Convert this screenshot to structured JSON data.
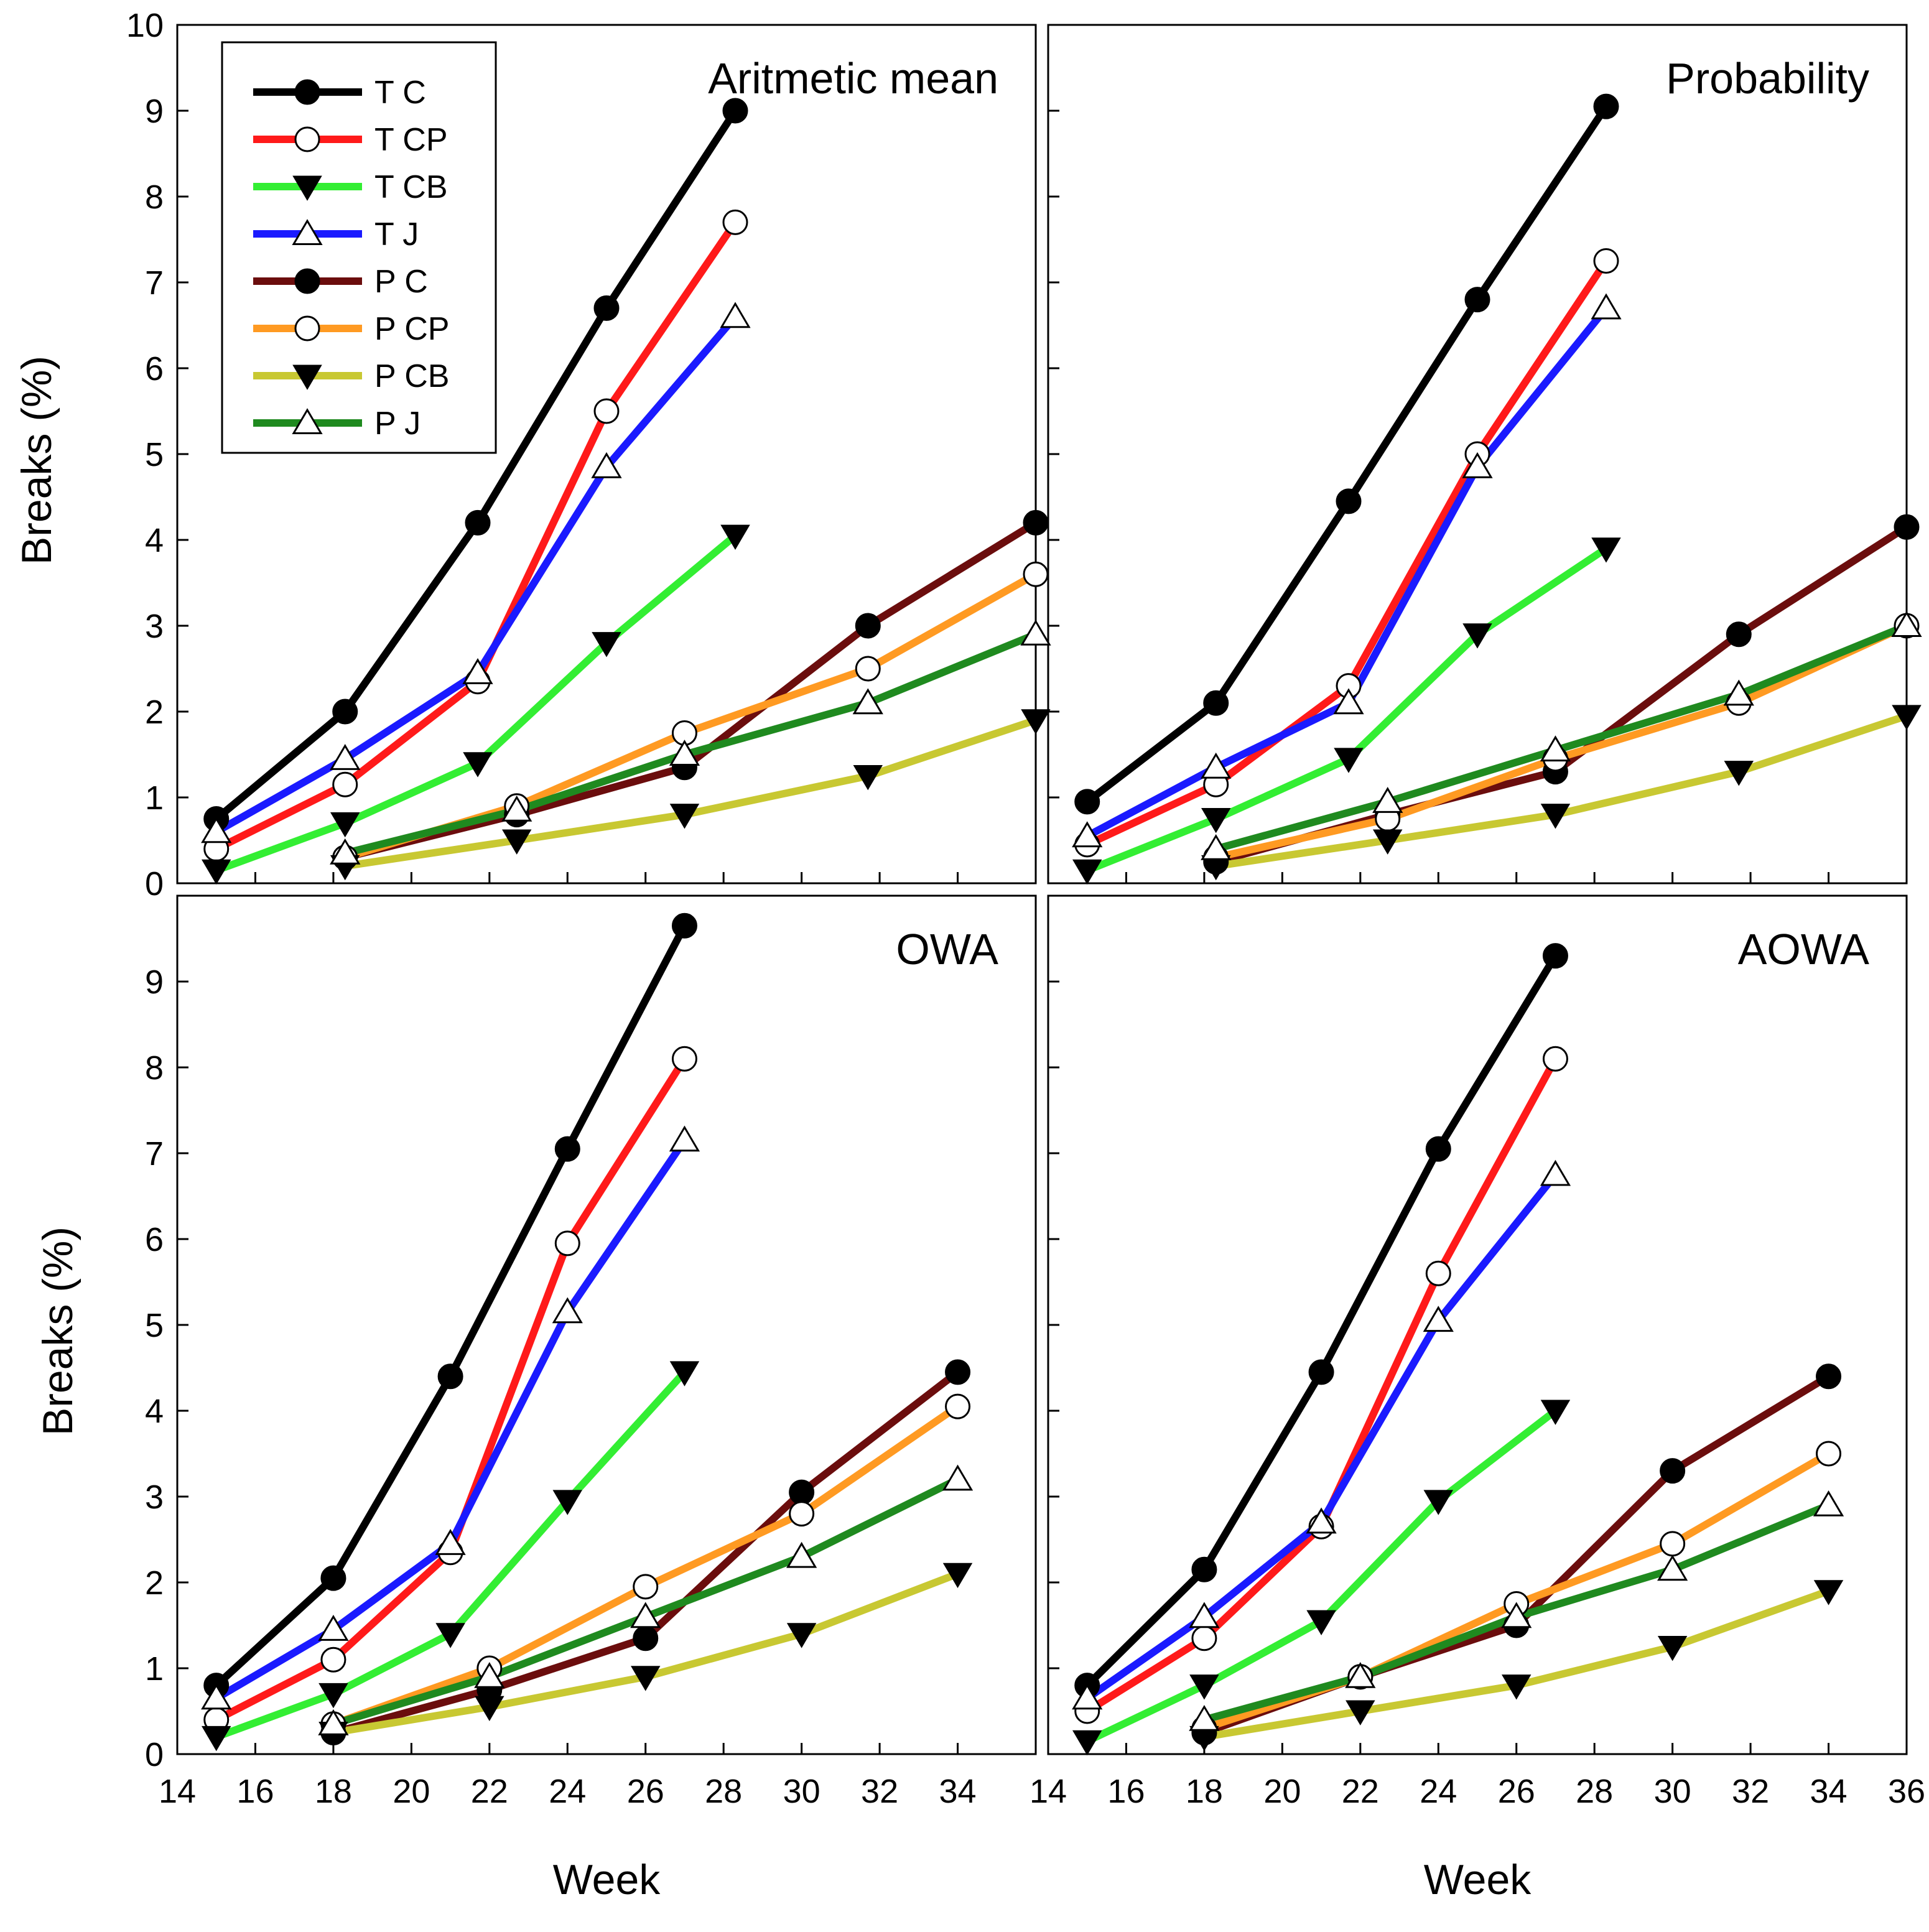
{
  "chart_data": {
    "type": "line",
    "xlabel": "Week",
    "ylabel": "Breaks (%)",
    "series_styles": [
      {
        "name": "T C",
        "color": "#000000",
        "marker": "filled-circle"
      },
      {
        "name": "T CP",
        "color": "#ff1a1a",
        "marker": "open-circle"
      },
      {
        "name": "T CB",
        "color": "#33ee33",
        "marker": "filled-triangle-down"
      },
      {
        "name": "T J",
        "color": "#1a1aff",
        "marker": "open-triangle-up"
      },
      {
        "name": "P C",
        "color": "#6b0d0d",
        "marker": "filled-circle"
      },
      {
        "name": "P CP",
        "color": "#ff9a22",
        "marker": "open-circle"
      },
      {
        "name": "P CB",
        "color": "#c8c832",
        "marker": "filled-triangle-down"
      },
      {
        "name": "P J",
        "color": "#1f8a1f",
        "marker": "open-triangle-up"
      }
    ],
    "panels": [
      {
        "title": "Aritmetic mean",
        "xlim": [
          14,
          36
        ],
        "ylim": [
          0,
          10
        ],
        "yticks": [
          0,
          1,
          2,
          3,
          4,
          5,
          6,
          7,
          8,
          9,
          10
        ],
        "xticks": [],
        "series": [
          {
            "name": "T C",
            "x": [
              15,
              18.3,
              21.7,
              25,
              28.3
            ],
            "y": [
              0.75,
              2.0,
              4.2,
              6.7,
              9.0
            ]
          },
          {
            "name": "T CP",
            "x": [
              15,
              18.3,
              21.7,
              25,
              28.3
            ],
            "y": [
              0.4,
              1.15,
              2.35,
              5.5,
              7.7
            ]
          },
          {
            "name": "T CB",
            "x": [
              15,
              18.3,
              21.7,
              25,
              28.3
            ],
            "y": [
              0.15,
              0.7,
              1.4,
              2.8,
              4.05
            ]
          },
          {
            "name": "T J",
            "x": [
              15,
              18.3,
              21.7,
              25,
              28.3
            ],
            "y": [
              0.6,
              1.45,
              2.45,
              4.85,
              6.6
            ]
          },
          {
            "name": "P C",
            "x": [
              18.3,
              22.7,
              27,
              31.7,
              36
            ],
            "y": [
              0.3,
              0.8,
              1.35,
              3.0,
              4.2
            ]
          },
          {
            "name": "P CP",
            "x": [
              18.3,
              22.7,
              27,
              31.7,
              36
            ],
            "y": [
              0.3,
              0.9,
              1.75,
              2.5,
              3.6
            ]
          },
          {
            "name": "P CB",
            "x": [
              18.3,
              22.7,
              27,
              31.7,
              36
            ],
            "y": [
              0.2,
              0.5,
              0.8,
              1.25,
              1.9
            ]
          },
          {
            "name": "P J",
            "x": [
              18.3,
              22.7,
              27,
              31.7,
              36
            ],
            "y": [
              0.35,
              0.85,
              1.5,
              2.1,
              2.9
            ]
          }
        ]
      },
      {
        "title": "Probability",
        "xlim": [
          14,
          36
        ],
        "ylim": [
          0,
          10
        ],
        "yticks": [],
        "xticks": [],
        "series": [
          {
            "name": "T C",
            "x": [
              15,
              18.3,
              21.7,
              25,
              28.3
            ],
            "y": [
              0.95,
              2.1,
              4.45,
              6.8,
              9.05
            ]
          },
          {
            "name": "T CP",
            "x": [
              15,
              18.3,
              21.7,
              25,
              28.3
            ],
            "y": [
              0.45,
              1.15,
              2.3,
              5.0,
              7.25
            ]
          },
          {
            "name": "T CB",
            "x": [
              15,
              18.3,
              21.7,
              25,
              28.3
            ],
            "y": [
              0.15,
              0.75,
              1.45,
              2.9,
              3.9
            ]
          },
          {
            "name": "T J",
            "x": [
              15,
              18.3,
              21.7,
              25,
              28.3
            ],
            "y": [
              0.55,
              1.35,
              2.1,
              4.85,
              6.7
            ]
          },
          {
            "name": "P C",
            "x": [
              18.3,
              22.7,
              27,
              31.7,
              36
            ],
            "y": [
              0.25,
              0.8,
              1.3,
              2.9,
              4.15
            ]
          },
          {
            "name": "P CP",
            "x": [
              18.3,
              22.7,
              27,
              31.7,
              36
            ],
            "y": [
              0.3,
              0.75,
              1.45,
              2.1,
              3.0
            ]
          },
          {
            "name": "P CB",
            "x": [
              18.3,
              22.7,
              27,
              31.7,
              36
            ],
            "y": [
              0.2,
              0.5,
              0.8,
              1.3,
              1.95
            ]
          },
          {
            "name": "P J",
            "x": [
              18.3,
              22.7,
              27,
              31.7,
              36
            ],
            "y": [
              0.4,
              0.95,
              1.55,
              2.2,
              3.0
            ]
          }
        ]
      },
      {
        "title": "OWA",
        "xlim": [
          14,
          36
        ],
        "ylim": [
          0,
          10
        ],
        "yticks": [
          0,
          1,
          2,
          3,
          4,
          5,
          6,
          7,
          8,
          9
        ],
        "xticks": [
          14,
          16,
          18,
          20,
          22,
          24,
          26,
          28,
          30,
          32,
          34
        ],
        "series": [
          {
            "name": "T C",
            "x": [
              15,
              18,
              21,
              24,
              27
            ],
            "y": [
              0.8,
              2.05,
              4.4,
              7.05,
              9.65
            ]
          },
          {
            "name": "T CP",
            "x": [
              15,
              18,
              21,
              24,
              27
            ],
            "y": [
              0.4,
              1.1,
              2.35,
              5.95,
              8.1
            ]
          },
          {
            "name": "T CB",
            "x": [
              15,
              18,
              21,
              24,
              27
            ],
            "y": [
              0.2,
              0.7,
              1.4,
              2.95,
              4.45
            ]
          },
          {
            "name": "T J",
            "x": [
              15,
              18,
              21,
              24,
              27
            ],
            "y": [
              0.65,
              1.45,
              2.45,
              5.15,
              7.15
            ]
          },
          {
            "name": "P C",
            "x": [
              18,
              22,
              26,
              30,
              34
            ],
            "y": [
              0.25,
              0.75,
              1.35,
              3.05,
              4.45
            ]
          },
          {
            "name": "P CP",
            "x": [
              18,
              22,
              26,
              30,
              34
            ],
            "y": [
              0.35,
              1.0,
              1.95,
              2.8,
              4.05
            ]
          },
          {
            "name": "P CB",
            "x": [
              18,
              22,
              26,
              30,
              34
            ],
            "y": [
              0.25,
              0.55,
              0.9,
              1.4,
              2.1
            ]
          },
          {
            "name": "P J",
            "x": [
              18,
              22,
              26,
              30,
              34
            ],
            "y": [
              0.35,
              0.9,
              1.6,
              2.3,
              3.2
            ]
          }
        ]
      },
      {
        "title": "AOWA",
        "xlim": [
          14,
          36
        ],
        "ylim": [
          0,
          10
        ],
        "yticks": [],
        "xticks": [
          14,
          16,
          18,
          20,
          22,
          24,
          26,
          28,
          30,
          32,
          34,
          36
        ],
        "series": [
          {
            "name": "T C",
            "x": [
              15,
              18,
              21,
              24,
              27
            ],
            "y": [
              0.8,
              2.15,
              4.45,
              7.05,
              9.3
            ]
          },
          {
            "name": "T CP",
            "x": [
              15,
              18,
              21,
              24,
              27
            ],
            "y": [
              0.5,
              1.35,
              2.65,
              5.6,
              8.1
            ]
          },
          {
            "name": "T CB",
            "x": [
              15,
              18,
              21,
              24,
              27
            ],
            "y": [
              0.15,
              0.8,
              1.55,
              2.95,
              4.0
            ]
          },
          {
            "name": "T J",
            "x": [
              15,
              18,
              21,
              24,
              27
            ],
            "y": [
              0.65,
              1.6,
              2.7,
              5.05,
              6.75
            ]
          },
          {
            "name": "P C",
            "x": [
              18,
              22,
              26,
              30,
              34
            ],
            "y": [
              0.25,
              0.9,
              1.5,
              3.3,
              4.4
            ]
          },
          {
            "name": "P CP",
            "x": [
              18,
              22,
              26,
              30,
              34
            ],
            "y": [
              0.3,
              0.9,
              1.75,
              2.45,
              3.5
            ]
          },
          {
            "name": "P CB",
            "x": [
              18,
              22,
              26,
              30,
              34
            ],
            "y": [
              0.2,
              0.5,
              0.8,
              1.25,
              1.9
            ]
          },
          {
            "name": "P J",
            "x": [
              18,
              22,
              26,
              30,
              34
            ],
            "y": [
              0.4,
              0.9,
              1.6,
              2.15,
              2.9
            ]
          }
        ]
      }
    ],
    "legend": {
      "placement": "top-left of first panel",
      "entries": [
        "T C",
        "T CP",
        "T CB",
        "T J",
        "P C",
        "P CP",
        "P CB",
        "P J"
      ]
    }
  }
}
